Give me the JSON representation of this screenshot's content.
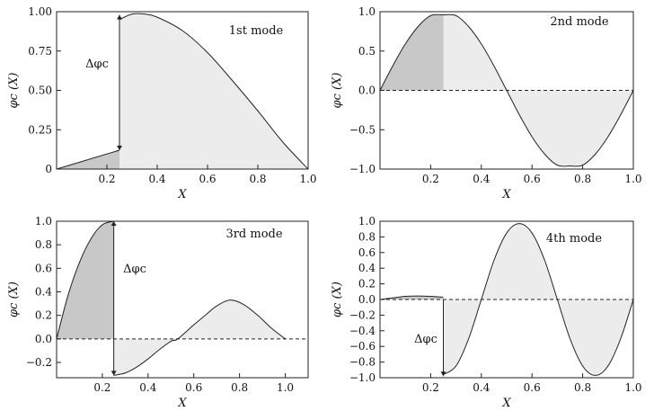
{
  "chart_data": [
    {
      "type": "area",
      "annotation": "1st mode",
      "delta_label": "Δφc",
      "xlabel": "X",
      "ylabel": "φc (X)",
      "xlim": [
        0,
        1.0
      ],
      "ylim": [
        0,
        1.0
      ],
      "xticks": [
        {
          "v": 0.2,
          "label": "0.2"
        },
        {
          "v": 0.4,
          "label": "0.4"
        },
        {
          "v": 0.6,
          "label": "0.6"
        },
        {
          "v": 0.8,
          "label": "0.8"
        },
        {
          "v": 1.0,
          "label": "1.0"
        }
      ],
      "yticks": [
        {
          "v": 0,
          "label": "0"
        },
        {
          "v": 0.25,
          "label": "0.25"
        },
        {
          "v": 0.5,
          "label": "0.50"
        },
        {
          "v": 0.75,
          "label": "0.75"
        },
        {
          "v": 1.0,
          "label": "1.00"
        }
      ],
      "zero_line": false,
      "split_x": 0.25,
      "delta_range": [
        0.12,
        0.98
      ],
      "x": [
        0,
        0.25,
        0.25,
        0.3,
        0.35,
        0.4,
        0.5,
        0.6,
        0.7,
        0.8,
        0.9,
        1.0
      ],
      "y": [
        0,
        0.12,
        0.95,
        0.985,
        0.985,
        0.965,
        0.88,
        0.74,
        0.56,
        0.37,
        0.17,
        0
      ]
    },
    {
      "type": "area",
      "annotation": "2nd mode",
      "xlabel": "X",
      "ylabel": "φc (X)",
      "xlim": [
        0,
        1.0
      ],
      "ylim": [
        -1.0,
        1.0
      ],
      "xticks": [
        {
          "v": 0.2,
          "label": "0.2"
        },
        {
          "v": 0.4,
          "label": "0.4"
        },
        {
          "v": 0.6,
          "label": "0.6"
        },
        {
          "v": 0.8,
          "label": "0.8"
        },
        {
          "v": 1.0,
          "label": "1.0"
        }
      ],
      "yticks": [
        {
          "v": -1.0,
          "label": "−1.0"
        },
        {
          "v": -0.5,
          "label": "−0.5"
        },
        {
          "v": 0,
          "label": "0.0"
        },
        {
          "v": 0.5,
          "label": "0.5"
        },
        {
          "v": 1.0,
          "label": "1.0"
        }
      ],
      "zero_line": true,
      "split_x": 0.25,
      "x": [
        0,
        0.05,
        0.1,
        0.15,
        0.2,
        0.25,
        0.3,
        0.35,
        0.4,
        0.45,
        0.5,
        0.55,
        0.6,
        0.65,
        0.7,
        0.75,
        0.8,
        0.85,
        0.9,
        0.95,
        1.0
      ],
      "y": [
        0,
        0.31,
        0.59,
        0.81,
        0.95,
        0.96,
        0.95,
        0.81,
        0.59,
        0.31,
        0,
        -0.31,
        -0.59,
        -0.81,
        -0.95,
        -0.96,
        -0.95,
        -0.81,
        -0.59,
        -0.31,
        0
      ]
    },
    {
      "type": "area",
      "annotation": "3rd mode",
      "delta_label": "Δφc",
      "xlabel": "X",
      "ylabel": "φc (X)",
      "xlim": [
        0,
        1.1
      ],
      "ylim": [
        -0.33,
        1.0
      ],
      "xticks": [
        {
          "v": 0.2,
          "label": "0.2"
        },
        {
          "v": 0.4,
          "label": "0.4"
        },
        {
          "v": 0.6,
          "label": "0.6"
        },
        {
          "v": 0.8,
          "label": "0.8"
        },
        {
          "v": 1.0,
          "label": "1.0"
        }
      ],
      "yticks": [
        {
          "v": -0.2,
          "label": "−0.2"
        },
        {
          "v": 0,
          "label": "0.0"
        },
        {
          "v": 0.2,
          "label": "0.2"
        },
        {
          "v": 0.4,
          "label": "0.4"
        },
        {
          "v": 0.6,
          "label": "0.6"
        },
        {
          "v": 0.8,
          "label": "0.8"
        },
        {
          "v": 1.0,
          "label": "1.0"
        }
      ],
      "zero_line": true,
      "split_x": 0.25,
      "delta_range": [
        -0.31,
        1.0
      ],
      "x": [
        0,
        0.05,
        0.1,
        0.15,
        0.2,
        0.25,
        0.25,
        0.3,
        0.35,
        0.4,
        0.45,
        0.5,
        0.53,
        0.6,
        0.65,
        0.7,
        0.76,
        0.82,
        0.88,
        0.94,
        1.0
      ],
      "y": [
        0,
        0.37,
        0.65,
        0.85,
        0.97,
        1.0,
        -0.31,
        -0.29,
        -0.24,
        -0.17,
        -0.09,
        -0.02,
        0,
        0.12,
        0.2,
        0.28,
        0.33,
        0.29,
        0.2,
        0.09,
        0
      ]
    },
    {
      "type": "area",
      "annotation": "4th mode",
      "delta_label": "Δφc",
      "xlabel": "X",
      "ylabel": "φc (X)",
      "xlim": [
        0,
        1.0
      ],
      "ylim": [
        -1.0,
        1.0
      ],
      "xticks": [
        {
          "v": 0.2,
          "label": "0.2"
        },
        {
          "v": 0.4,
          "label": "0.4"
        },
        {
          "v": 0.6,
          "label": "0.6"
        },
        {
          "v": 0.8,
          "label": "0.8"
        },
        {
          "v": 1.0,
          "label": "1.0"
        }
      ],
      "yticks": [
        {
          "v": -1.0,
          "label": "−1.0"
        },
        {
          "v": -0.8,
          "label": "−0.8"
        },
        {
          "v": -0.6,
          "label": "−0.6"
        },
        {
          "v": -0.4,
          "label": "−0.4"
        },
        {
          "v": -0.2,
          "label": "−0.2"
        },
        {
          "v": 0,
          "label": "0.0"
        },
        {
          "v": 0.2,
          "label": "0.2"
        },
        {
          "v": 0.4,
          "label": "0.4"
        },
        {
          "v": 0.6,
          "label": "0.6"
        },
        {
          "v": 0.8,
          "label": "0.8"
        },
        {
          "v": 1.0,
          "label": "1.0"
        }
      ],
      "zero_line": true,
      "split_x": 0.25,
      "delta_range": [
        -0.98,
        0.0
      ],
      "x": [
        0,
        0.05,
        0.1,
        0.15,
        0.2,
        0.25,
        0.25,
        0.3,
        0.35,
        0.4,
        0.45,
        0.5,
        0.55,
        0.6,
        0.65,
        0.7,
        0.75,
        0.8,
        0.85,
        0.9,
        0.95,
        1.0
      ],
      "y": [
        0,
        0.02,
        0.04,
        0.045,
        0.04,
        0.03,
        -0.96,
        -0.85,
        -0.5,
        0,
        0.5,
        0.85,
        0.97,
        0.85,
        0.5,
        0,
        -0.5,
        -0.85,
        -0.97,
        -0.85,
        -0.5,
        0
      ]
    }
  ],
  "colors": {
    "dark_fill": "#c8c8c8",
    "light_fill": "#ececec",
    "stroke": "#222222"
  }
}
